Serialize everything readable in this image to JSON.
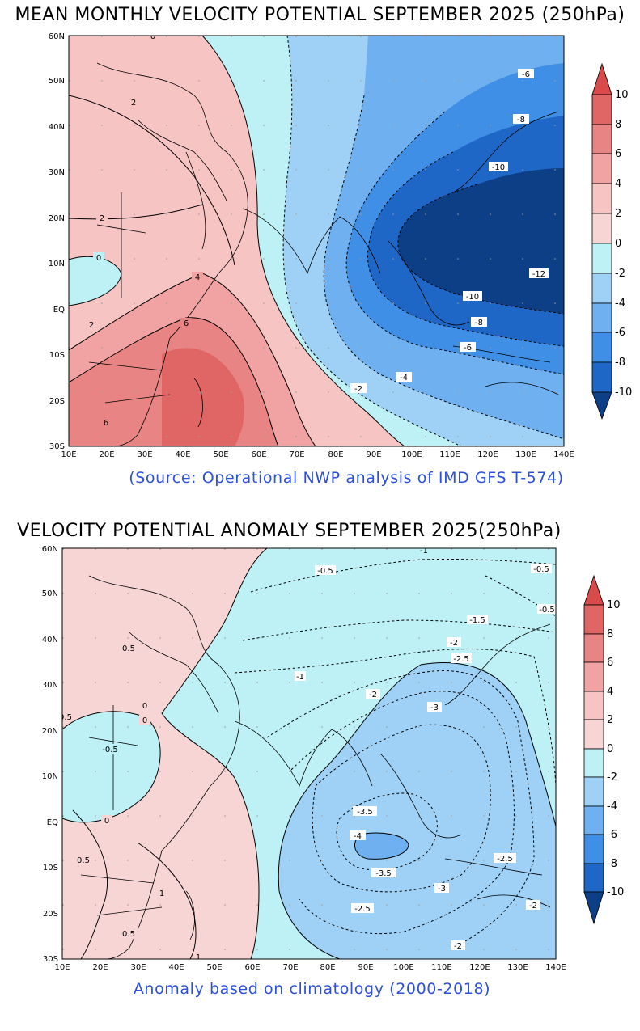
{
  "colors": {
    "pos_10": "#d94a4a",
    "pos_8": "#e06666",
    "pos_6": "#e98484",
    "pos_4": "#f1a3a3",
    "pos_2": "#f7c4c4",
    "pos_0": "#f8d5d5",
    "neg_0": "#bdf1f6",
    "neg_2": "#9fd1f7",
    "neg_4": "#6fb0f0",
    "neg_6": "#3f8fe6",
    "neg_8": "#1e67c7",
    "neg_10": "#0d3f86"
  },
  "map1": {
    "title": "MEAN MONTHLY VELOCITY POTENTIAL SEPTEMBER 2025 (250hPa)",
    "source": "(Source: Operational NWP analysis of IMD GFS T-574)",
    "lat_labels": [
      "60N",
      "50N",
      "40N",
      "30N",
      "20N",
      "10N",
      "EQ",
      "10S",
      "20S",
      "30S"
    ],
    "lon_labels": [
      "10E",
      "20E",
      "30E",
      "40E",
      "50E",
      "60E",
      "70E",
      "80E",
      "90E",
      "100E",
      "110E",
      "120E",
      "130E",
      "140E"
    ],
    "colorbar_labels": [
      "10",
      "8",
      "6",
      "4",
      "2",
      "0",
      "-2",
      "-4",
      "-6",
      "-8",
      "-10"
    ],
    "contour_labels": [
      {
        "t": "-6"
      },
      {
        "t": "-8"
      },
      {
        "t": "-10"
      },
      {
        "t": "-12"
      },
      {
        "t": "-10"
      },
      {
        "t": "-8"
      },
      {
        "t": "-6"
      },
      {
        "t": "-4"
      },
      {
        "t": "-2"
      },
      {
        "t": "2"
      },
      {
        "t": "2"
      },
      {
        "t": "0"
      },
      {
        "t": "4"
      },
      {
        "t": "6"
      },
      {
        "t": "2"
      },
      {
        "t": "6"
      },
      {
        "t": "0"
      }
    ]
  },
  "map2": {
    "title": "VELOCITY POTENTIAL ANOMALY SEPTEMBER 2025(250hPa)",
    "source": "Anomaly based on climatology (2000-2018)",
    "lat_labels": [
      "60N",
      "50N",
      "40N",
      "30N",
      "20N",
      "10N",
      "EQ",
      "10S",
      "20S",
      "30S"
    ],
    "lon_labels": [
      "10E",
      "20E",
      "30E",
      "40E",
      "50E",
      "60E",
      "70E",
      "80E",
      "90E",
      "100E",
      "110E",
      "120E",
      "130E",
      "140E"
    ],
    "colorbar_labels": [
      "10",
      "8",
      "6",
      "4",
      "2",
      "0",
      "-2",
      "-4",
      "-6",
      "-8",
      "-10"
    ],
    "contour_labels": [
      {
        "t": "-1"
      },
      {
        "t": "-0.5"
      },
      {
        "t": "-0.5"
      },
      {
        "t": "-0.5"
      },
      {
        "t": "-1.5"
      },
      {
        "t": "-2"
      },
      {
        "t": "-2.5"
      },
      {
        "t": "-2"
      },
      {
        "t": "-3"
      },
      {
        "t": "-1"
      },
      {
        "t": "-3.5"
      },
      {
        "t": "-4"
      },
      {
        "t": "-3.5"
      },
      {
        "t": "-3"
      },
      {
        "t": "-2.5"
      },
      {
        "t": "-2.5"
      },
      {
        "t": "-2"
      },
      {
        "t": "-2"
      },
      {
        "t": "0.5"
      },
      {
        "t": "0"
      },
      {
        "t": "0"
      },
      {
        "t": "-0.5"
      },
      {
        "t": "0"
      },
      {
        "t": "0.5"
      },
      {
        "t": "1"
      },
      {
        "t": "0.5"
      },
      {
        "t": "1"
      },
      {
        "t": "0.5"
      }
    ]
  }
}
